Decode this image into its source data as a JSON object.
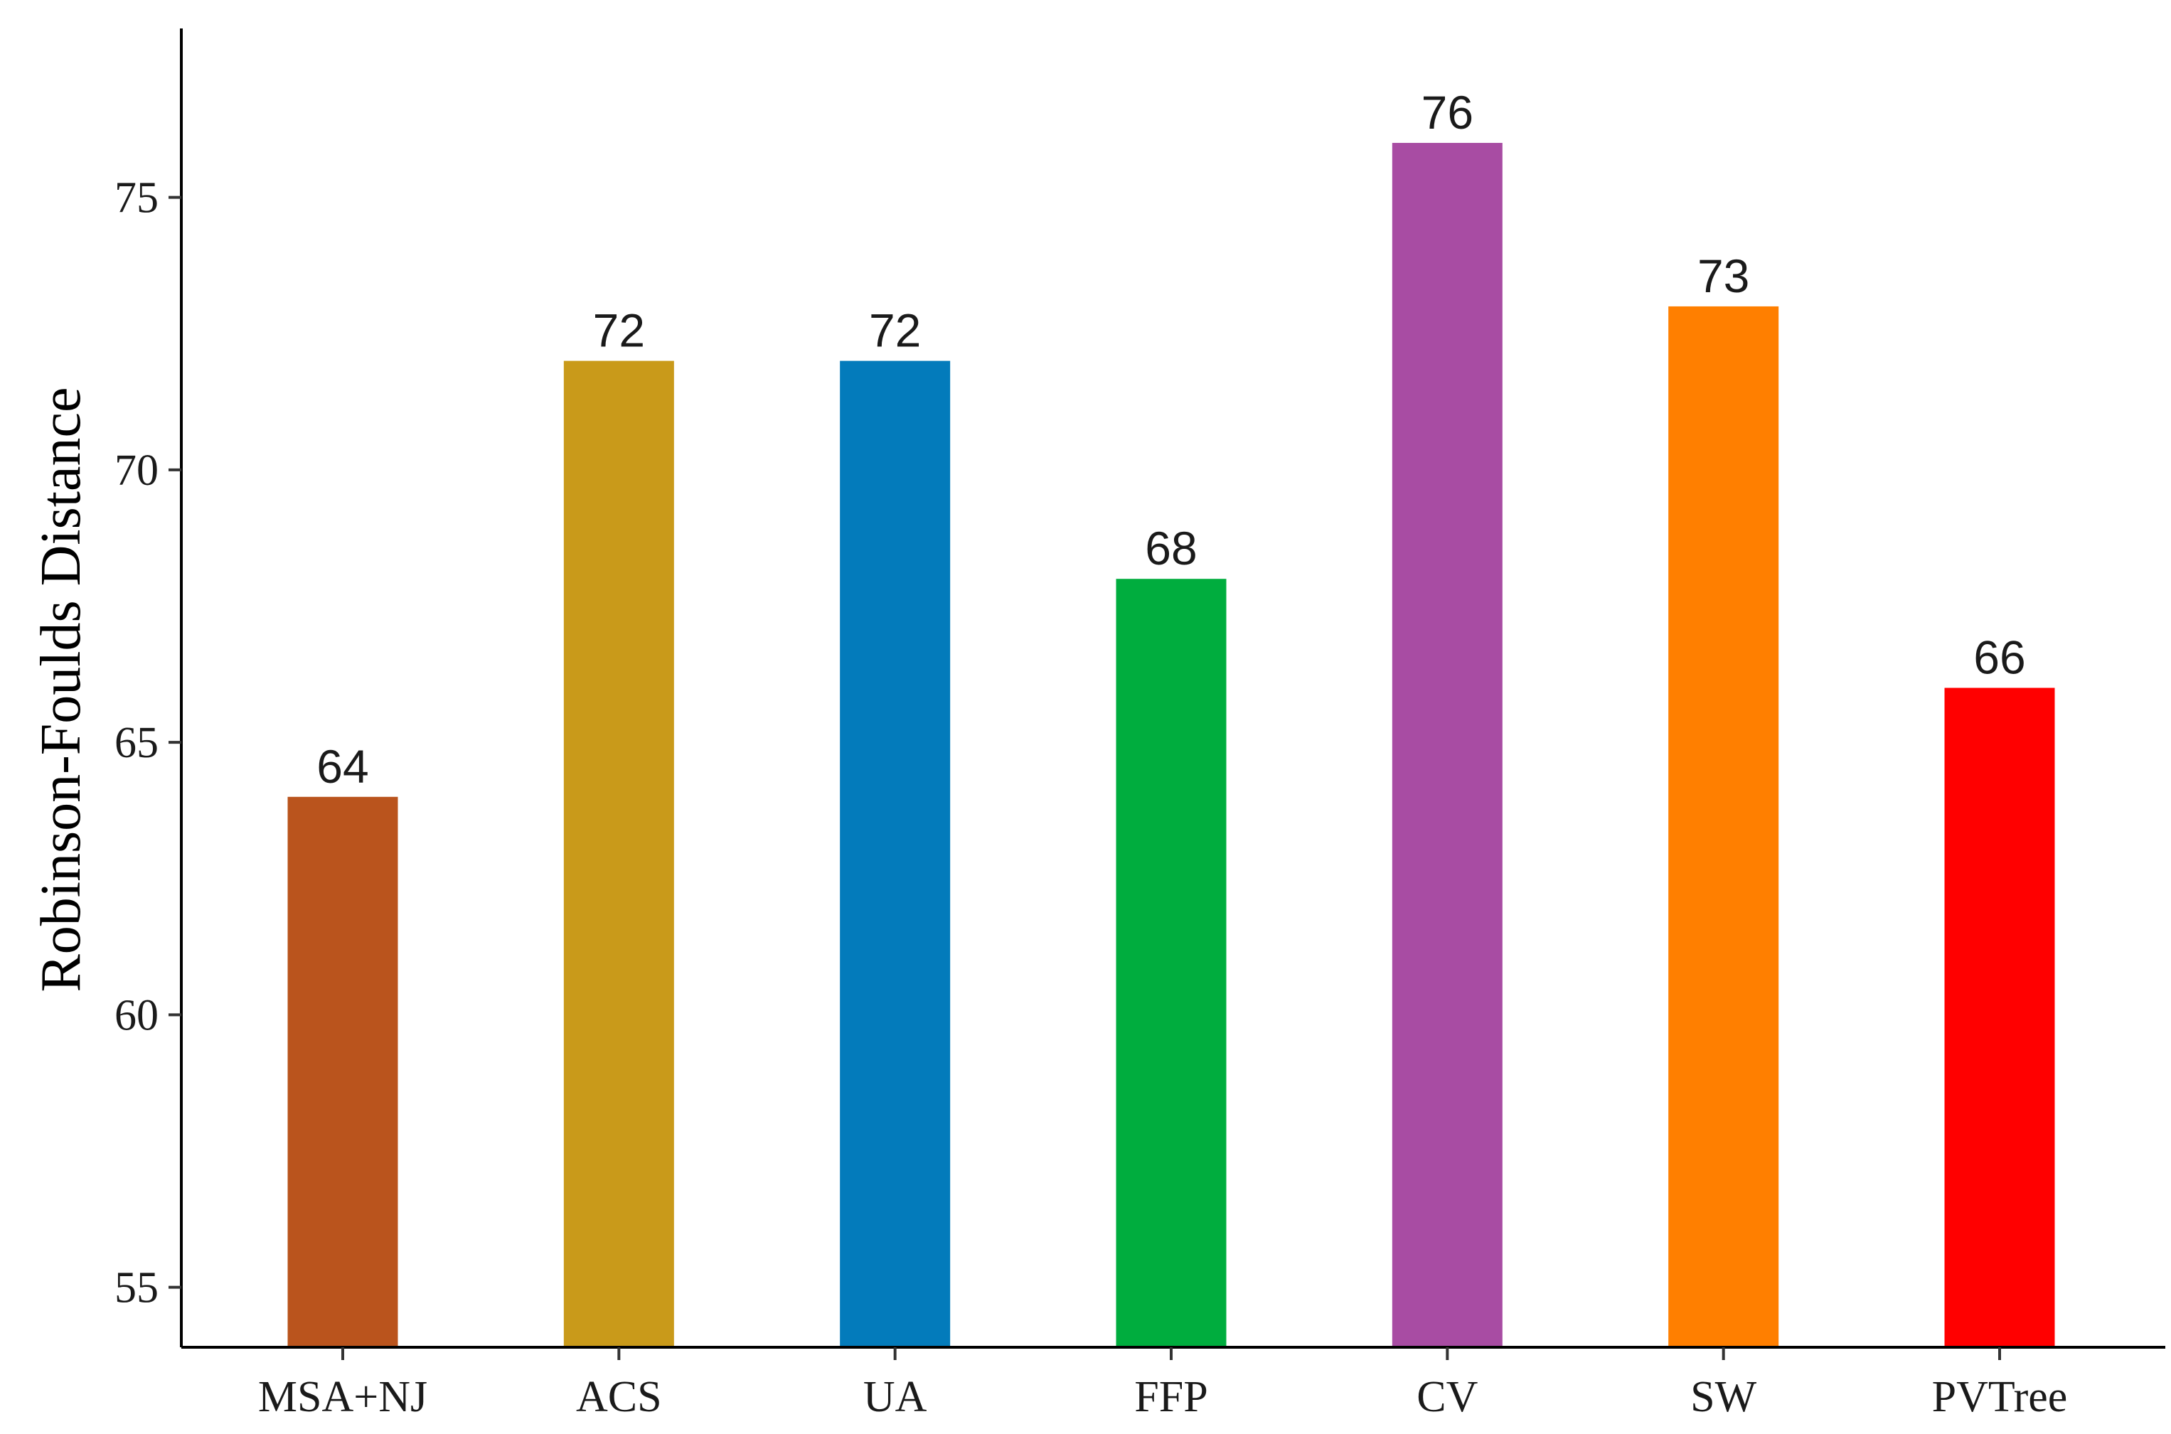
{
  "chart_data": {
    "type": "bar",
    "title": "",
    "xlabel": "",
    "ylabel": "Robinson-Foulds Distance",
    "categories": [
      "MSA+NJ",
      "ACS",
      "UA",
      "FFP",
      "CV",
      "SW",
      "PVTree"
    ],
    "values": [
      64,
      72,
      72,
      68,
      76,
      73,
      66
    ],
    "data_labels": [
      "64",
      "72",
      "72",
      "68",
      "76",
      "73",
      "66"
    ],
    "colors": [
      "#BA541D",
      "#C99A1A",
      "#037BBB",
      "#00AD3E",
      "#A84CA3",
      "#FF7F00",
      "#FF0000"
    ],
    "yticks": [
      55,
      60,
      65,
      70,
      75
    ],
    "ytick_labels": [
      "55",
      "60",
      "65",
      "70",
      "75"
    ],
    "ylim": [
      53.9,
      78.1
    ],
    "grid": false,
    "legend": "none"
  }
}
